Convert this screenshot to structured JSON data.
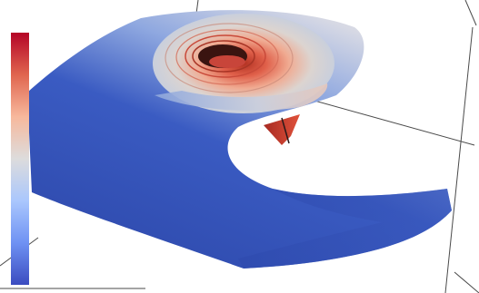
{
  "colormap": {
    "name": "coolwarm",
    "stops": [
      "#b40426",
      "#e0654f",
      "#f7b89c",
      "#dddcdc",
      "#aac7fd",
      "#6f92f3",
      "#3b4cc0"
    ]
  },
  "colors": {
    "background": "#ffffff",
    "axis_lines": "#444444",
    "surface_low": "#2f4fb3",
    "surface_mid": "#dcdde3",
    "surface_high": "#e05a45",
    "hole": "#2a1010"
  }
}
